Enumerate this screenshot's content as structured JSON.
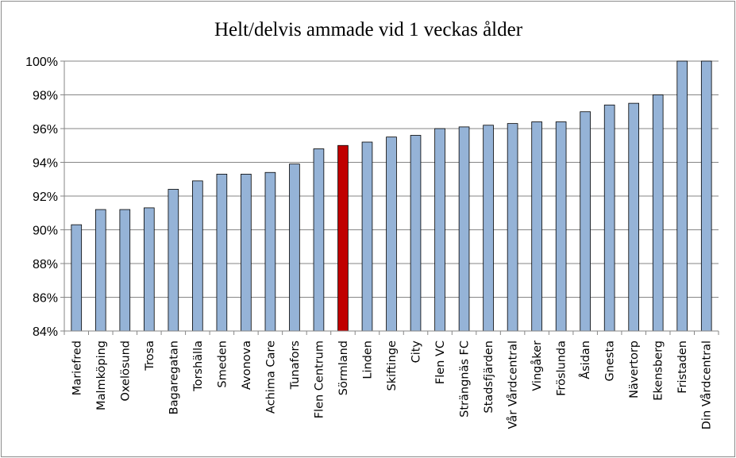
{
  "chart_data": {
    "type": "bar",
    "title": "Helt/delvis ammade vid 1 veckas ålder",
    "xlabel": "",
    "ylabel": "",
    "ylim": [
      84,
      100
    ],
    "yticks": [
      84,
      86,
      88,
      90,
      92,
      94,
      96,
      98,
      100
    ],
    "ytick_labels": [
      "84%",
      "86%",
      "88%",
      "90%",
      "92%",
      "94%",
      "96%",
      "98%",
      "100%"
    ],
    "grid": true,
    "legend": "none",
    "categories": [
      "Mariefred",
      "Malmköping",
      "Oxelösund",
      "Trosa",
      "Bagaregatan",
      "Torshälla",
      "Smeden",
      "Avonova",
      "Achima Care",
      "Tunafors",
      "Flen Centrum",
      "Sörmland",
      "Linden",
      "Skiftinge",
      "City",
      "Flen VC",
      "Strängnäs FC",
      "Stadsfjärden",
      "Vår Vårdcentral",
      "Vingåker",
      "Fröslunda",
      "Åsidan",
      "Gnesta",
      "Nävertorp",
      "Ekensberg",
      "Fristaden",
      "Din Vårdcentral"
    ],
    "values": [
      90.3,
      91.2,
      91.2,
      91.3,
      92.4,
      92.9,
      93.3,
      93.3,
      93.4,
      93.9,
      94.8,
      95.0,
      95.2,
      95.5,
      95.6,
      96.0,
      96.1,
      96.2,
      96.3,
      96.4,
      96.4,
      97.0,
      97.4,
      97.5,
      98.0,
      100.0,
      100.0
    ],
    "colors": {
      "bar": "#95b3d7",
      "highlight": "#c00000",
      "bar_edge": "#000000",
      "grid": "#868686"
    },
    "highlight_category": "Sörmland"
  }
}
